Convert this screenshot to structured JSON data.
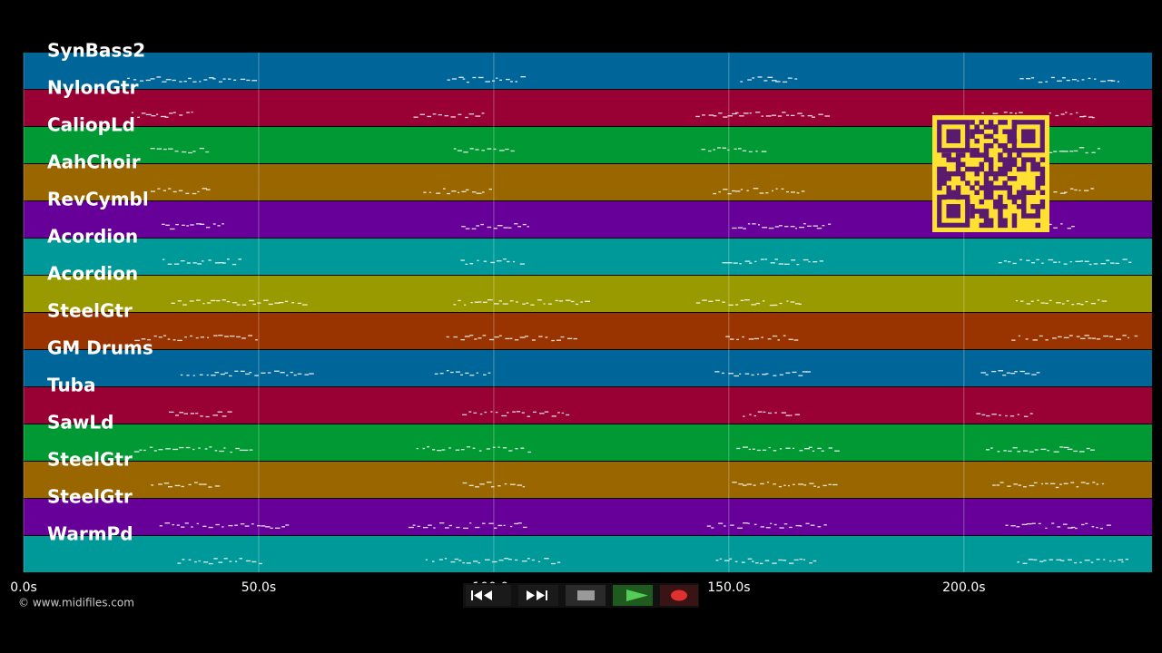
{
  "tracks": [
    {
      "name": "SynBass2",
      "color": "#006699"
    },
    {
      "name": "NylonGtr",
      "color": "#990033"
    },
    {
      "name": "CaliopLd",
      "color": "#009933"
    },
    {
      "name": "AahChoir",
      "color": "#996600"
    },
    {
      "name": "RevCymbl",
      "color": "#660099"
    },
    {
      "name": "Acordion",
      "color": "#009999"
    },
    {
      "name": "Acordion",
      "color": "#999900"
    },
    {
      "name": "SteelGtr",
      "color": "#993300"
    },
    {
      "name": "GM Drums",
      "color": "#006699"
    },
    {
      "name": "Tuba",
      "color": "#990033"
    },
    {
      "name": "SawLd",
      "color": "#009933"
    },
    {
      "name": "SteelGtr",
      "color": "#996600"
    },
    {
      "name": "SteelGtr",
      "color": "#660099"
    },
    {
      "name": "WarmPd",
      "color": "#009999"
    }
  ],
  "time_axis": {
    "xlim": [
      0,
      240
    ],
    "xticks": [
      {
        "value": 0,
        "label": "0.0s"
      },
      {
        "value": 50,
        "label": "50.0s"
      },
      {
        "value": 100,
        "label": "100.0s"
      },
      {
        "value": 150,
        "label": "150.0s"
      },
      {
        "value": 200,
        "label": "200.0s"
      }
    ]
  },
  "credit": "© www.midifiles.com"
}
